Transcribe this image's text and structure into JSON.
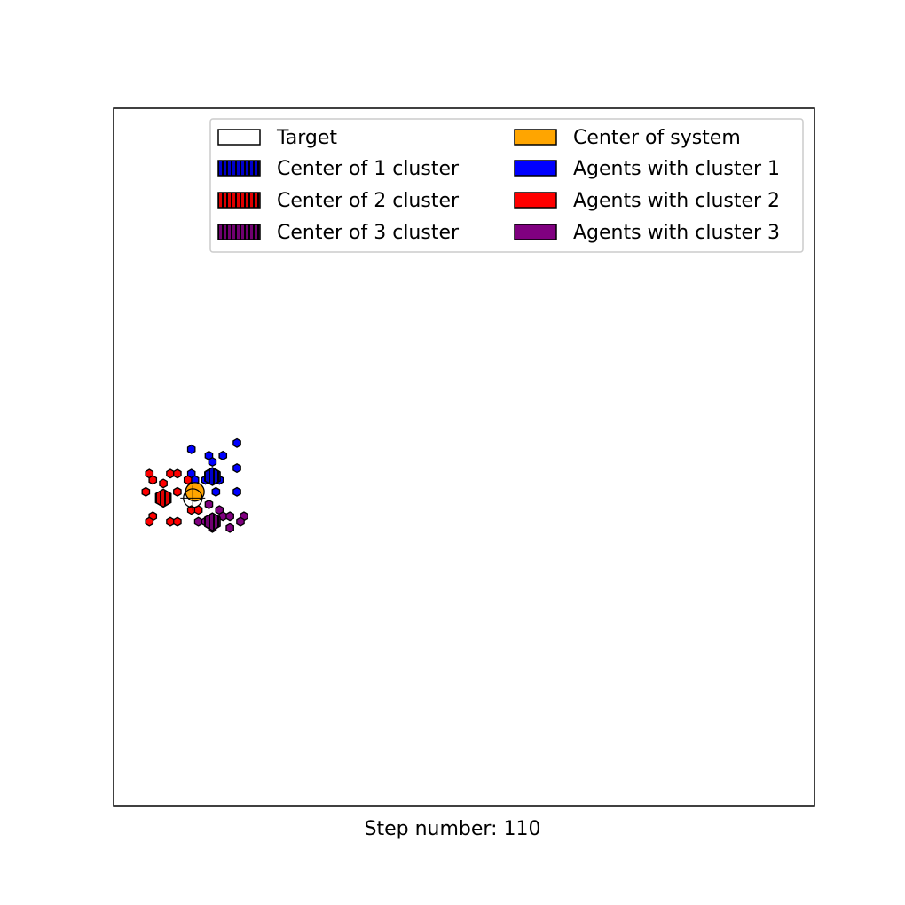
{
  "colors": {
    "target": "#ffffff",
    "center_of_system": "#ffa500",
    "cluster_1": "#0000ff",
    "cluster_2": "#ff0000",
    "cluster_3": "#800080",
    "cluster_1_center": "#0000cc",
    "cluster_2_center": "#e00000",
    "cluster_3_center": "#700070"
  },
  "legend": {
    "placement": "top-right",
    "items": [
      {
        "label": "Target",
        "fill": "#ffffff",
        "hatch": false
      },
      {
        "label": "Center of system",
        "fill": "#ffa500",
        "hatch": false
      },
      {
        "label": "Center of 1 cluster",
        "fill": "#0000cc",
        "hatch": true
      },
      {
        "label": "Agents with cluster 1",
        "fill": "#0000ff",
        "hatch": false
      },
      {
        "label": "Center of 2 cluster",
        "fill": "#e00000",
        "hatch": true
      },
      {
        "label": "Agents with cluster 2",
        "fill": "#ff0000",
        "hatch": false
      },
      {
        "label": "Center of 3 cluster",
        "fill": "#700070",
        "hatch": true
      },
      {
        "label": "Agents with cluster 3",
        "fill": "#800080",
        "hatch": false
      }
    ]
  },
  "step_label": "Step number: 110",
  "chart_data": {
    "type": "scatter",
    "xlim": [
      0,
      100
    ],
    "ylim": [
      0,
      100
    ],
    "grid": false,
    "axes_ticks_visible": false,
    "target": {
      "x": 11.3,
      "y": 44.1
    },
    "center_of_system": {
      "x": 11.6,
      "y": 45.0
    },
    "series": [
      {
        "name": "Agents with cluster 1",
        "center": {
          "x": 14.1,
          "y": 47.2
        },
        "points": [
          {
            "x": 11.1,
            "y": 51.1
          },
          {
            "x": 13.6,
            "y": 50.2
          },
          {
            "x": 15.6,
            "y": 50.2
          },
          {
            "x": 17.6,
            "y": 52.0
          },
          {
            "x": 14.1,
            "y": 49.3
          },
          {
            "x": 17.6,
            "y": 48.4
          },
          {
            "x": 13.6,
            "y": 47.6
          },
          {
            "x": 14.6,
            "y": 47.6
          },
          {
            "x": 11.1,
            "y": 47.6
          },
          {
            "x": 13.1,
            "y": 46.7
          },
          {
            "x": 14.1,
            "y": 46.7
          },
          {
            "x": 15.1,
            "y": 46.7
          },
          {
            "x": 11.6,
            "y": 46.7
          },
          {
            "x": 14.6,
            "y": 45.0
          },
          {
            "x": 17.6,
            "y": 45.0
          }
        ]
      },
      {
        "name": "Agents with cluster 2",
        "center": {
          "x": 7.1,
          "y": 44.1
        },
        "points": [
          {
            "x": 5.1,
            "y": 47.6
          },
          {
            "x": 5.6,
            "y": 46.7
          },
          {
            "x": 8.1,
            "y": 47.6
          },
          {
            "x": 9.1,
            "y": 47.6
          },
          {
            "x": 10.6,
            "y": 46.7
          },
          {
            "x": 7.1,
            "y": 46.2
          },
          {
            "x": 4.6,
            "y": 45.0
          },
          {
            "x": 9.1,
            "y": 45.0
          },
          {
            "x": 11.1,
            "y": 42.4
          },
          {
            "x": 12.1,
            "y": 42.4
          },
          {
            "x": 5.6,
            "y": 41.5
          },
          {
            "x": 5.1,
            "y": 40.7
          },
          {
            "x": 8.1,
            "y": 40.7
          },
          {
            "x": 9.1,
            "y": 40.7
          }
        ]
      },
      {
        "name": "Agents with cluster 3",
        "center": {
          "x": 14.1,
          "y": 40.7
        },
        "points": [
          {
            "x": 13.6,
            "y": 43.2
          },
          {
            "x": 15.1,
            "y": 42.4
          },
          {
            "x": 15.6,
            "y": 41.5
          },
          {
            "x": 16.6,
            "y": 41.5
          },
          {
            "x": 18.6,
            "y": 41.5
          },
          {
            "x": 12.1,
            "y": 40.7
          },
          {
            "x": 18.1,
            "y": 40.7
          },
          {
            "x": 13.1,
            "y": 40.7
          },
          {
            "x": 14.1,
            "y": 39.8
          },
          {
            "x": 16.6,
            "y": 39.8
          }
        ]
      }
    ]
  }
}
